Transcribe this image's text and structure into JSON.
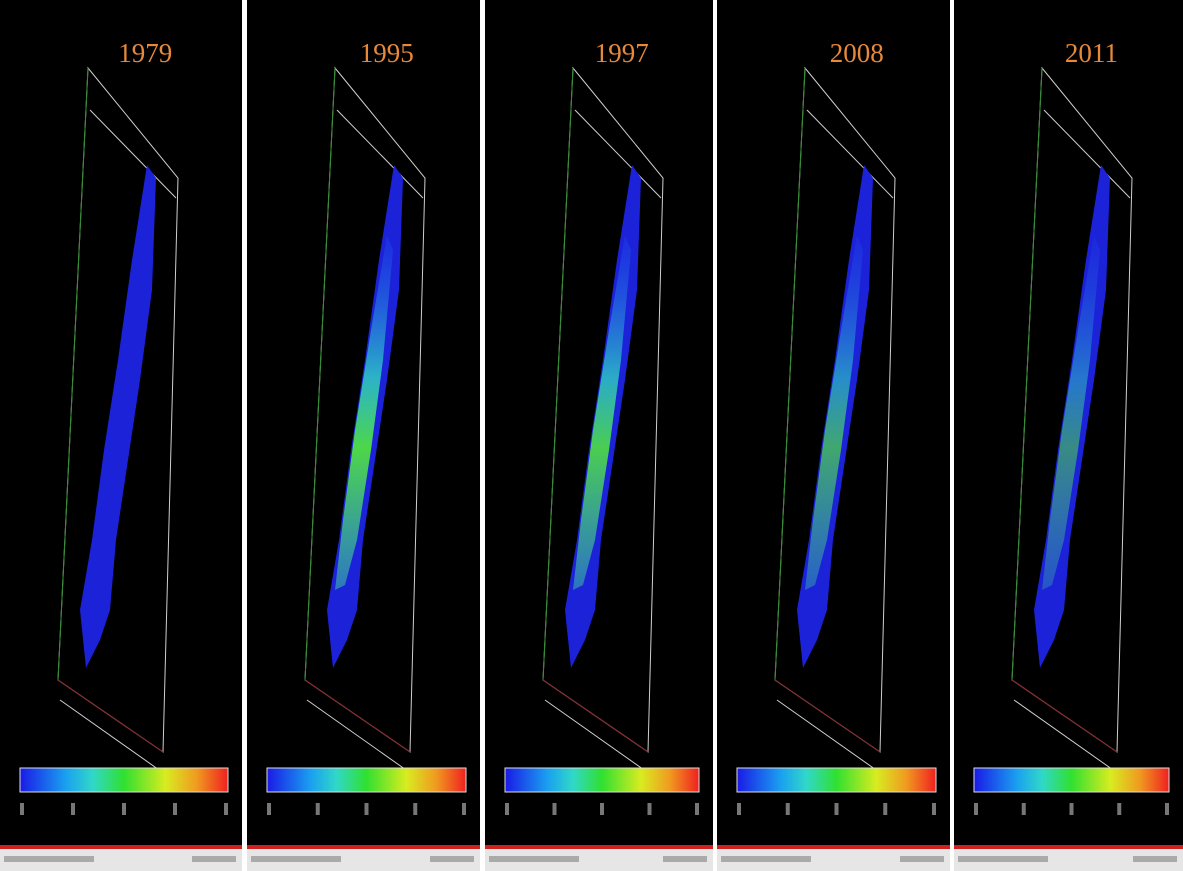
{
  "panels": [
    {
      "label": "1979"
    },
    {
      "label": "1995"
    },
    {
      "label": "1997"
    },
    {
      "label": "2008"
    },
    {
      "label": "2011"
    }
  ]
}
